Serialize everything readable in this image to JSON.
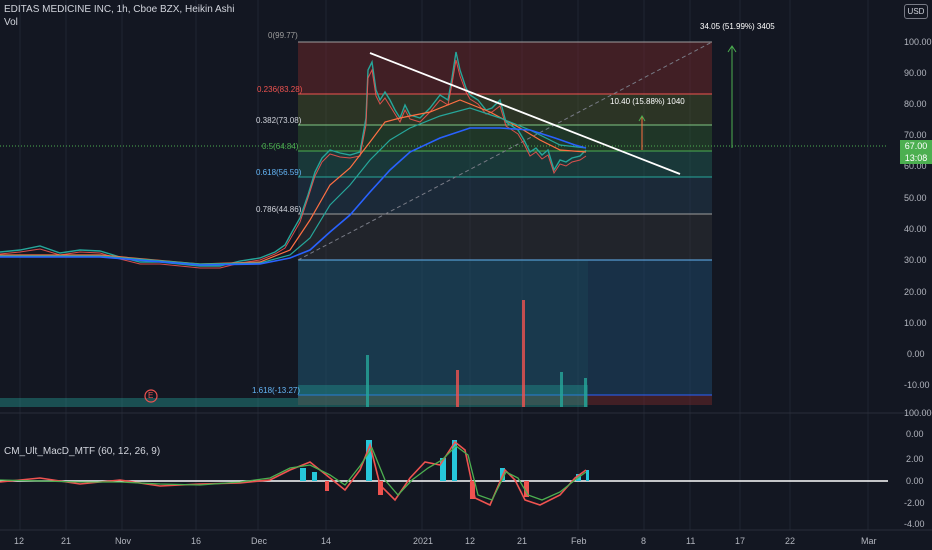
{
  "header": {
    "title": "EDITAS MEDICINE INC, 1h, Cboe BZX, Heikin Ashi",
    "volume_label": "Vol",
    "currency_button": "USD"
  },
  "price_axis": {
    "ticks": [
      "100.00",
      "90.00",
      "80.00",
      "70.00",
      "60.00",
      "50.00",
      "40.00",
      "30.00",
      "20.00",
      "10.00",
      "0.00",
      "-10.00"
    ],
    "volume_tick": "100.00",
    "last_price": "67.00",
    "countdown": "13:08"
  },
  "macd": {
    "label": "CM_Ult_MacD_MTF (60, 12, 26, 9)",
    "ticks": [
      "0.00",
      "2.00",
      "0.00",
      "-2.00",
      "-4.00"
    ]
  },
  "time_axis": {
    "ticks": [
      "12",
      "21",
      "Nov",
      "16",
      "Dec",
      "14",
      "2021",
      "12",
      "21",
      "Feb",
      "8",
      "11",
      "17",
      "22",
      "Mar"
    ]
  },
  "fib_levels": [
    {
      "label": "0(99.77)",
      "price": 99.77
    },
    {
      "label": "0.236(83.28)",
      "price": 83.28
    },
    {
      "label": "0.382(73.08)",
      "price": 73.08
    },
    {
      "label": "0.5(64.84)",
      "price": 64.84
    },
    {
      "label": "0.618(56.59)",
      "price": 56.59
    },
    {
      "label": "0.786(44.86)",
      "price": 44.86
    },
    {
      "label": "1.618(-13.27)",
      "price": -13.27
    }
  ],
  "measurements": {
    "big": "34.05 (51.99%) 3405",
    "small": "10.40 (15.88%) 1040"
  },
  "earnings_marker": "E",
  "colors": {
    "background": "#131722",
    "bullish": "#26a69a",
    "bearish": "#ef5350",
    "price_line": "#4caf50",
    "trendline": "#ffffff"
  }
}
